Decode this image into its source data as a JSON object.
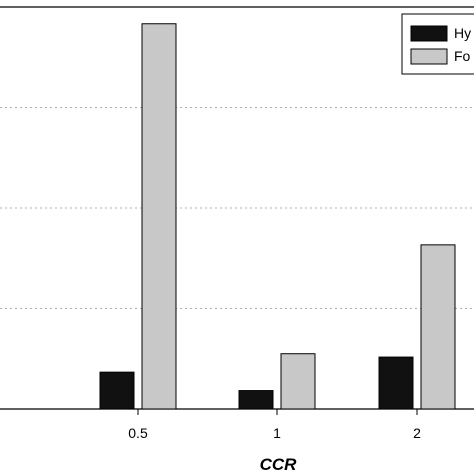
{
  "chart_data": {
    "type": "bar",
    "categories": [
      "0.5",
      "1",
      "2"
    ],
    "series": [
      {
        "name": "Hy",
        "color": "#111111",
        "values": [
          22,
          11,
          31
        ]
      },
      {
        "name": "Fo",
        "color": "#c8c8c8",
        "values": [
          230,
          33,
          98
        ]
      }
    ],
    "xlabel": "CCR",
    "ylabel": "",
    "ylim": [
      0,
      240
    ],
    "grid": "horizontal-dotted",
    "legend_position": "top-right"
  }
}
